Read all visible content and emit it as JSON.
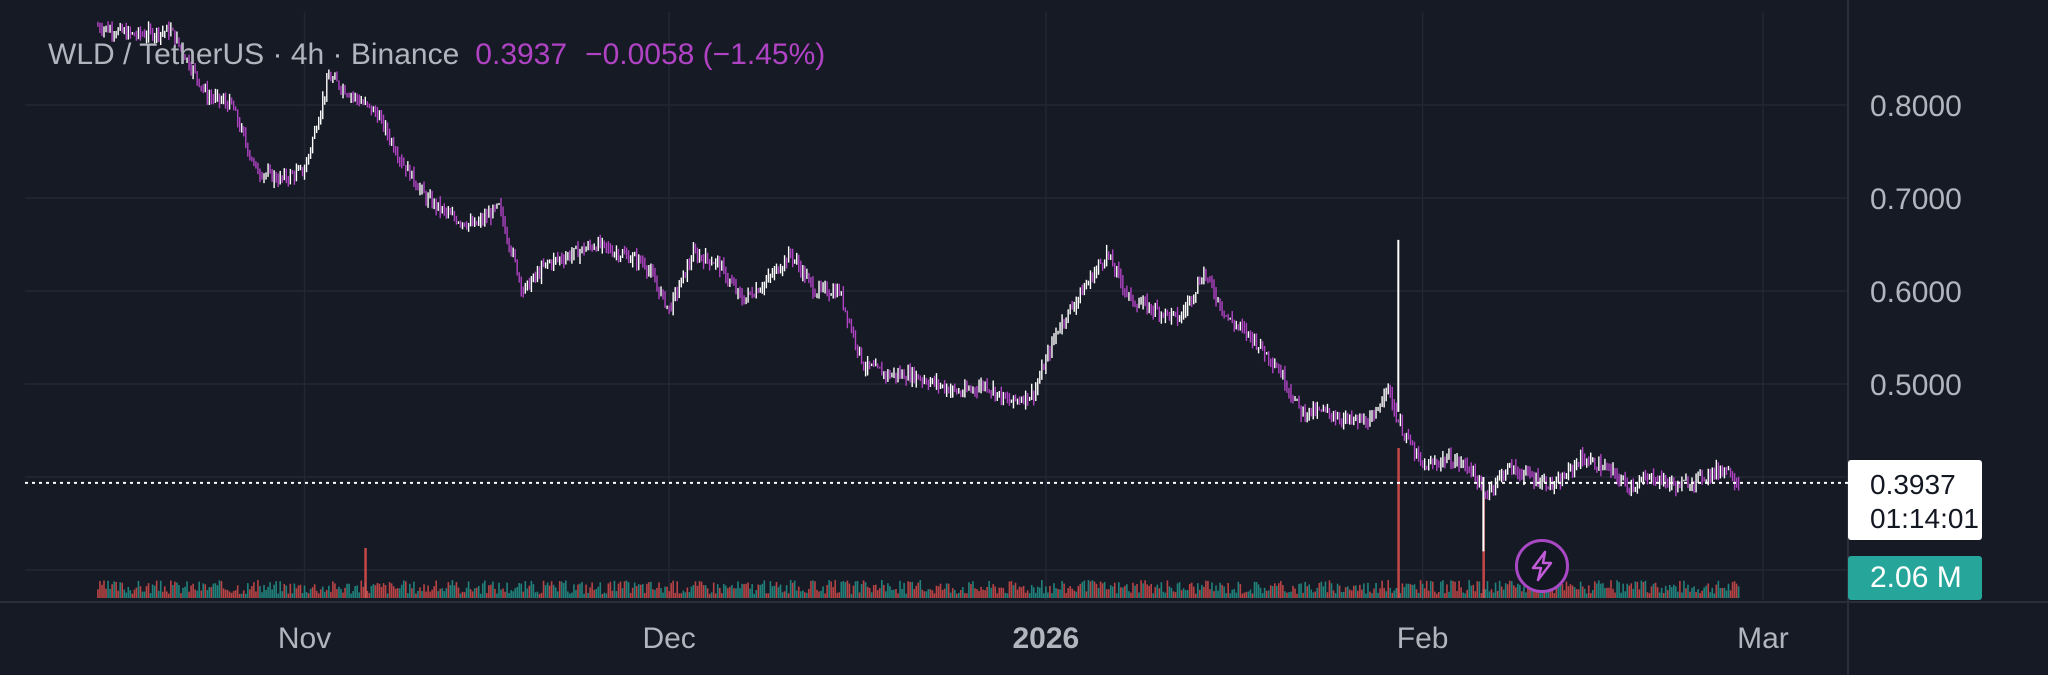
{
  "legend": {
    "symbol": "WLD / TetherUS · 4h · Binance",
    "last_price": "0.3937",
    "change": "−0.0058 (−1.45%)"
  },
  "price_label": {
    "price": "0.3937",
    "countdown": "01:14:01"
  },
  "volume_label": "2.06 M",
  "icons": {
    "bolt": "lightning-bolt-icon"
  },
  "colors": {
    "background": "#161a25",
    "grid": "#232734",
    "up_candle": "#ffffff",
    "down_candle": "#b043c4",
    "price_line": "#ffffff",
    "volume_up": "#26a69a",
    "volume_down": "#ef5350",
    "axis_text": "#b2b5be",
    "accent": "#b043c4"
  },
  "chart_data": {
    "type": "line",
    "title": "",
    "xlabel": "",
    "ylabel": "",
    "x_ticks": [
      "Nov",
      "Dec",
      "2026",
      "Feb",
      "Mar"
    ],
    "y_ticks": [
      "0.8000",
      "0.7000",
      "0.6000",
      "0.5000"
    ],
    "y_tick_values": [
      0.8,
      0.7,
      0.6,
      0.5
    ],
    "ylim": [
      0.3,
      0.9
    ],
    "xlim": [
      "2025-10-09",
      "2026-03-08"
    ],
    "grid": true,
    "current_price": 0.3937,
    "series": [
      {
        "x": [
          "2025-10-15",
          "2025-10-18",
          "2025-10-21",
          "2025-10-24",
          "2025-10-26",
          "2025-10-28",
          "2025-10-30",
          "2025-11-01",
          "2025-11-03",
          "2025-11-05",
          "2025-11-07",
          "2025-11-09",
          "2025-11-11",
          "2025-11-13",
          "2025-11-15",
          "2025-11-17",
          "2025-11-19",
          "2025-11-21",
          "2025-11-23",
          "2025-11-25",
          "2025-11-27",
          "2025-11-29",
          "2025-12-01",
          "2025-12-03",
          "2025-12-05",
          "2025-12-07",
          "2025-12-09",
          "2025-12-11",
          "2025-12-13",
          "2025-12-15",
          "2025-12-17",
          "2025-12-19",
          "2025-12-21",
          "2025-12-23",
          "2025-12-25",
          "2025-12-27",
          "2025-12-29",
          "2025-12-31",
          "2026-01-02",
          "2026-01-04",
          "2026-01-06",
          "2026-01-08",
          "2026-01-10",
          "2026-01-12",
          "2026-01-14",
          "2026-01-16",
          "2026-01-18",
          "2026-01-20",
          "2026-01-22",
          "2026-01-24",
          "2026-01-26",
          "2026-01-28",
          "2026-01-29",
          "2026-01-30",
          "2026-02-01",
          "2026-02-03",
          "2026-02-05",
          "2026-02-06",
          "2026-02-08",
          "2026-02-10",
          "2026-02-12",
          "2026-02-14",
          "2026-02-16",
          "2026-02-18",
          "2026-02-20",
          "2026-02-22",
          "2026-02-24",
          "2026-02-26",
          "2026-02-27"
        ],
        "values": [
          0.885,
          0.875,
          0.88,
          0.81,
          0.8,
          0.73,
          0.72,
          0.73,
          0.83,
          0.81,
          0.79,
          0.74,
          0.7,
          0.68,
          0.67,
          0.69,
          0.6,
          0.63,
          0.64,
          0.65,
          0.64,
          0.63,
          0.58,
          0.64,
          0.63,
          0.59,
          0.61,
          0.64,
          0.6,
          0.6,
          0.52,
          0.51,
          0.51,
          0.5,
          0.49,
          0.5,
          0.48,
          0.49,
          0.56,
          0.6,
          0.64,
          0.59,
          0.58,
          0.57,
          0.62,
          0.57,
          0.55,
          0.52,
          0.47,
          0.47,
          0.46,
          0.46,
          0.5,
          0.46,
          0.41,
          0.42,
          0.41,
          0.38,
          0.41,
          0.4,
          0.39,
          0.42,
          0.41,
          0.39,
          0.4,
          0.39,
          0.4,
          0.41,
          0.3937
        ]
      }
    ],
    "volume_spikes": [
      {
        "x": "2025-11-06",
        "value": 2.0
      },
      {
        "x": "2026-01-30",
        "value": 6.0
      },
      {
        "x": "2026-02-06",
        "value": 4.0
      }
    ],
    "last_volume": 2.06
  }
}
